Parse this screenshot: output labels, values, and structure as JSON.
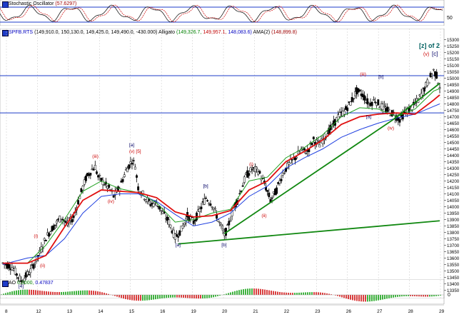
{
  "stochastic": {
    "title": "Stochastic Oscillator",
    "value": "(57.6297)",
    "axis": [
      "50"
    ]
  },
  "main": {
    "symbol": "SPFB.RTS",
    "ohlc": "(149,910.0, 150,130.0, 149,425.0, 149,490.0, -430.000)",
    "alligator_label": "Alligato",
    "alligator_green": "(149,326.7,",
    "alligator_red": "149,957.1,",
    "alligator_blue": "148,083.6)",
    "ama_label": "AMA(2)",
    "ama_value": "(148,899.8)",
    "annotation_main": "[z] of 2",
    "annotation_sub1": "(v)",
    "annotation_sub2": "[c]"
  },
  "ao": {
    "title": "AO",
    "value1": "0.0000,",
    "value2": "0.47837",
    "axis": [
      "0"
    ]
  },
  "x_axis": {
    "labels": [
      "8",
      "12",
      "13",
      "14",
      "15",
      "16",
      "19",
      "20",
      "21",
      "22",
      "23",
      "26",
      "27",
      "28",
      "29"
    ]
  },
  "chart_data": {
    "type": "line",
    "series": [],
    "y_ticks": [
      13350,
      13400,
      13450,
      13500,
      13550,
      13600,
      13650,
      13700,
      13750,
      13800,
      13850,
      13900,
      13950,
      14000,
      14050,
      14100,
      14150,
      14200,
      14250,
      14300,
      14350,
      14400,
      14450,
      14500,
      14550,
      14600,
      14650,
      14700,
      14750,
      14800,
      14850,
      14900,
      14950,
      15000,
      15050,
      15100,
      15150,
      15200,
      15250,
      15300
    ],
    "ylim": [
      13330,
      15320
    ],
    "x_labels": [
      "8",
      "12",
      "13",
      "14",
      "15",
      "16",
      "19",
      "20",
      "21",
      "22",
      "23",
      "26",
      "27",
      "28",
      "29"
    ],
    "price_path": [
      [
        0,
        13560
      ],
      [
        3,
        13530
      ],
      [
        6,
        13420
      ],
      [
        9,
        13500
      ],
      [
        12,
        13640
      ],
      [
        14,
        13760
      ],
      [
        16,
        13830
      ],
      [
        19,
        13920
      ],
      [
        21,
        13860
      ],
      [
        23,
        13920
      ],
      [
        25,
        14080
      ],
      [
        27,
        14220
      ],
      [
        29,
        14290
      ],
      [
        30,
        14310
      ],
      [
        31,
        14230
      ],
      [
        33,
        14180
      ],
      [
        35,
        14130
      ],
      [
        36,
        14080
      ],
      [
        38,
        14150
      ],
      [
        40,
        14280
      ],
      [
        42,
        14360
      ],
      [
        43,
        14320
      ],
      [
        44,
        14150
      ],
      [
        46,
        14080
      ],
      [
        48,
        14020
      ],
      [
        50,
        14030
      ],
      [
        52,
        13950
      ],
      [
        54,
        13880
      ],
      [
        56,
        13760
      ],
      [
        58,
        13820
      ],
      [
        60,
        13930
      ],
      [
        62,
        13880
      ],
      [
        64,
        13970
      ],
      [
        66,
        14070
      ],
      [
        68,
        14020
      ],
      [
        70,
        13900
      ],
      [
        72,
        13780
      ],
      [
        73,
        13830
      ],
      [
        75,
        13990
      ],
      [
        77,
        14100
      ],
      [
        79,
        14240
      ],
      [
        81,
        14290
      ],
      [
        83,
        14280
      ],
      [
        85,
        14180
      ],
      [
        87,
        14050
      ],
      [
        89,
        14130
      ],
      [
        91,
        14260
      ],
      [
        93,
        14330
      ],
      [
        95,
        14380
      ],
      [
        97,
        14440
      ],
      [
        99,
        14430
      ],
      [
        101,
        14520
      ],
      [
        103,
        14480
      ],
      [
        105,
        14560
      ],
      [
        107,
        14620
      ],
      [
        109,
        14700
      ],
      [
        111,
        14740
      ],
      [
        113,
        14810
      ],
      [
        115,
        14900
      ],
      [
        117,
        14870
      ],
      [
        119,
        14800
      ],
      [
        121,
        14830
      ],
      [
        123,
        14780
      ],
      [
        125,
        14750
      ],
      [
        127,
        14720
      ],
      [
        129,
        14680
      ],
      [
        131,
        14740
      ],
      [
        133,
        14770
      ],
      [
        135,
        14830
      ],
      [
        137,
        14920
      ],
      [
        139,
        15010
      ],
      [
        140,
        15060
      ],
      [
        141,
        15020
      ],
      [
        142,
        14940
      ]
    ],
    "blue_ma": [
      [
        0,
        13550
      ],
      [
        8,
        13600
      ],
      [
        14,
        13620
      ],
      [
        20,
        13750
      ],
      [
        26,
        13950
      ],
      [
        32,
        14080
      ],
      [
        38,
        14100
      ],
      [
        44,
        14100
      ],
      [
        50,
        14040
      ],
      [
        56,
        13940
      ],
      [
        62,
        13850
      ],
      [
        68,
        13880
      ],
      [
        74,
        13950
      ],
      [
        80,
        14080
      ],
      [
        86,
        14160
      ],
      [
        92,
        14300
      ],
      [
        98,
        14380
      ],
      [
        104,
        14450
      ],
      [
        110,
        14540
      ],
      [
        116,
        14600
      ],
      [
        122,
        14650
      ],
      [
        128,
        14690
      ],
      [
        134,
        14720
      ],
      [
        140,
        14780
      ],
      [
        142,
        14800
      ]
    ],
    "red_ma": [
      [
        0,
        13560
      ],
      [
        8,
        13560
      ],
      [
        14,
        13620
      ],
      [
        20,
        13840
      ],
      [
        26,
        14050
      ],
      [
        32,
        14130
      ],
      [
        38,
        14120
      ],
      [
        44,
        14110
      ],
      [
        50,
        14070
      ],
      [
        56,
        13960
      ],
      [
        62,
        13920
      ],
      [
        68,
        13930
      ],
      [
        74,
        13970
      ],
      [
        80,
        14130
      ],
      [
        86,
        14200
      ],
      [
        92,
        14350
      ],
      [
        98,
        14430
      ],
      [
        104,
        14520
      ],
      [
        110,
        14640
      ],
      [
        116,
        14700
      ],
      [
        122,
        14720
      ],
      [
        128,
        14730
      ],
      [
        134,
        14720
      ],
      [
        140,
        14830
      ],
      [
        142,
        14870
      ]
    ],
    "green_ma": [
      [
        0,
        13560
      ],
      [
        8,
        13560
      ],
      [
        14,
        13700
      ],
      [
        20,
        13900
      ],
      [
        26,
        14120
      ],
      [
        32,
        14200
      ],
      [
        38,
        14140
      ],
      [
        44,
        14110
      ],
      [
        50,
        14030
      ],
      [
        56,
        13880
      ],
      [
        62,
        13900
      ],
      [
        68,
        13950
      ],
      [
        74,
        13980
      ],
      [
        80,
        14200
      ],
      [
        86,
        14230
      ],
      [
        92,
        14380
      ],
      [
        98,
        14460
      ],
      [
        104,
        14560
      ],
      [
        110,
        14700
      ],
      [
        116,
        14770
      ],
      [
        122,
        14760
      ],
      [
        128,
        14700
      ],
      [
        134,
        14760
      ],
      [
        140,
        14900
      ],
      [
        142,
        14920
      ]
    ],
    "h_lines": [
      15020,
      14730
    ],
    "trend_lines": [
      {
        "from": [
          57,
          13710
        ],
        "to": [
          142,
          13890
        ],
        "color": "#118811"
      },
      {
        "from": [
          72,
          13790
        ],
        "to": [
          127,
          14680
        ],
        "color": "#118811"
      },
      {
        "from": [
          127,
          14680
        ],
        "to": [
          142,
          14960
        ],
        "color": "#118811"
      }
    ],
    "labels": [
      {
        "t": "[a]",
        "x": 42,
        "y": 14470,
        "c": "#000066"
      },
      {
        "t": "(v) [5]",
        "x": 42,
        "y": 14420,
        "c": "#cc0000"
      },
      {
        "t": "(iii)",
        "x": 30,
        "y": 14380,
        "c": "#cc0000"
      },
      {
        "t": "(iv)",
        "x": 35,
        "y": 14030,
        "c": "#cc0000"
      },
      {
        "t": "(i)",
        "x": 11,
        "y": 13760,
        "c": "#cc0000"
      },
      {
        "t": "(ii)",
        "x": 13,
        "y": 13530,
        "c": "#cc0000"
      },
      {
        "t": "[4]",
        "x": 6,
        "y": 13370,
        "c": "#000066"
      },
      {
        "t": "[a]",
        "x": 57,
        "y": 13690,
        "c": "#000066"
      },
      {
        "t": "[b]",
        "x": 66,
        "y": 14150,
        "c": "#000066"
      },
      {
        "t": "[b]",
        "x": 72,
        "y": 13690,
        "c": "#000066"
      },
      {
        "t": "(i)",
        "x": 81,
        "y": 14320,
        "c": "#cc0000"
      },
      {
        "t": "(ii)",
        "x": 85,
        "y": 13920,
        "c": "#cc0000"
      },
      {
        "t": "(iii)",
        "x": 117,
        "y": 15020,
        "c": "#cc0000"
      },
      {
        "t": "[b]",
        "x": 123,
        "y": 15000,
        "c": "#000066"
      },
      {
        "t": "[a]",
        "x": 119,
        "y": 14690,
        "c": "#000066"
      },
      {
        "t": "(iv)",
        "x": 126,
        "y": 14600,
        "c": "#cc0000"
      }
    ]
  }
}
